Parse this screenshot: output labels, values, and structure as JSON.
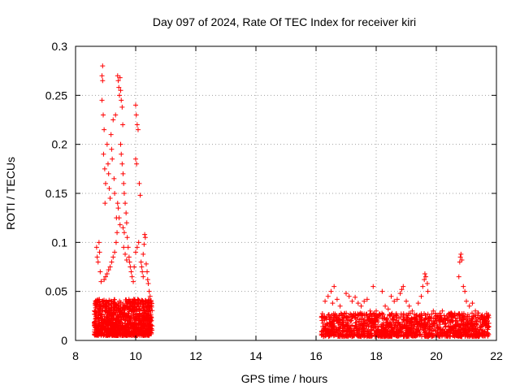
{
  "chart_data": {
    "type": "scatter",
    "title": "Day 097 of 2024, Rate Of TEC Index for receiver kiri",
    "xlabel": "GPS time / hours",
    "ylabel": "ROTI / TECUs",
    "xlim": [
      8,
      22
    ],
    "ylim": [
      0,
      0.3
    ],
    "x_ticks": [
      8,
      10,
      12,
      14,
      16,
      18,
      20,
      22
    ],
    "x_tick_labels": [
      "8",
      "10",
      "12",
      "14",
      "16",
      "18",
      "20",
      "22"
    ],
    "y_ticks": [
      0,
      0.05,
      0.1,
      0.15,
      0.2,
      0.25,
      0.3
    ],
    "y_tick_labels": [
      "0",
      "0.05",
      "0.1",
      "0.15",
      "0.2",
      "0.25",
      "0.3"
    ],
    "grid": true,
    "marker": "+",
    "marker_color": "#ff0000",
    "series": [
      {
        "name": "ROTI",
        "points": [
          [
            8.7,
            0.095
          ],
          [
            8.72,
            0.085
          ],
          [
            8.75,
            0.08
          ],
          [
            8.78,
            0.1
          ],
          [
            8.8,
            0.09
          ],
          [
            8.82,
            0.07
          ],
          [
            8.85,
            0.06
          ],
          [
            8.88,
            0.27
          ],
          [
            8.9,
            0.28
          ],
          [
            8.9,
            0.265
          ],
          [
            8.88,
            0.245
          ],
          [
            8.92,
            0.23
          ],
          [
            8.95,
            0.215
          ],
          [
            8.97,
            0.175
          ],
          [
            8.93,
            0.19
          ],
          [
            9.0,
            0.16
          ],
          [
            8.98,
            0.14
          ],
          [
            9.05,
            0.2
          ],
          [
            9.08,
            0.18
          ],
          [
            9.1,
            0.17
          ],
          [
            9.12,
            0.155
          ],
          [
            9.15,
            0.145
          ],
          [
            9.18,
            0.21
          ],
          [
            9.2,
            0.195
          ],
          [
            9.22,
            0.185
          ],
          [
            9.25,
            0.225
          ],
          [
            9.28,
            0.165
          ],
          [
            9.3,
            0.15
          ],
          [
            9.33,
            0.23
          ],
          [
            9.36,
            0.125
          ],
          [
            9.38,
            0.11
          ],
          [
            9.4,
            0.27
          ],
          [
            9.42,
            0.265
          ],
          [
            9.44,
            0.258
          ],
          [
            9.46,
            0.25
          ],
          [
            9.48,
            0.268
          ],
          [
            9.5,
            0.255
          ],
          [
            9.52,
            0.245
          ],
          [
            9.55,
            0.238
          ],
          [
            9.57,
            0.22
          ],
          [
            9.5,
            0.2
          ],
          [
            9.52,
            0.19
          ],
          [
            9.55,
            0.18
          ],
          [
            9.58,
            0.17
          ],
          [
            9.6,
            0.16
          ],
          [
            9.62,
            0.15
          ],
          [
            9.65,
            0.14
          ],
          [
            9.68,
            0.13
          ],
          [
            9.7,
            0.12
          ],
          [
            9.72,
            0.105
          ],
          [
            9.75,
            0.095
          ],
          [
            9.78,
            0.085
          ],
          [
            9.8,
            0.08
          ],
          [
            9.82,
            0.075
          ],
          [
            9.85,
            0.07
          ],
          [
            9.88,
            0.065
          ],
          [
            9.92,
            0.06
          ],
          [
            9.95,
            0.075
          ],
          [
            9.4,
            0.14
          ],
          [
            9.42,
            0.135
          ],
          [
            9.45,
            0.125
          ],
          [
            9.48,
            0.118
          ],
          [
            9.35,
            0.1
          ],
          [
            9.3,
            0.09
          ],
          [
            9.25,
            0.085
          ],
          [
            9.2,
            0.08
          ],
          [
            9.15,
            0.075
          ],
          [
            9.1,
            0.072
          ],
          [
            9.05,
            0.068
          ],
          [
            9.0,
            0.065
          ],
          [
            8.95,
            0.062
          ],
          [
            9.6,
            0.095
          ],
          [
            9.65,
            0.088
          ],
          [
            9.7,
            0.082
          ],
          [
            9.58,
            0.115
          ],
          [
            9.62,
            0.11
          ],
          [
            10.0,
            0.24
          ],
          [
            10.02,
            0.23
          ],
          [
            10.05,
            0.22
          ],
          [
            10.08,
            0.215
          ],
          [
            10.0,
            0.185
          ],
          [
            10.03,
            0.18
          ],
          [
            10.12,
            0.16
          ],
          [
            10.15,
            0.148
          ],
          [
            10.1,
            0.1
          ],
          [
            10.05,
            0.095
          ],
          [
            10.0,
            0.09
          ],
          [
            10.18,
            0.08
          ],
          [
            10.2,
            0.075
          ],
          [
            10.22,
            0.07
          ],
          [
            10.25,
            0.065
          ],
          [
            10.3,
            0.108
          ],
          [
            10.32,
            0.105
          ],
          [
            10.28,
            0.098
          ],
          [
            10.25,
            0.088
          ],
          [
            10.35,
            0.078
          ],
          [
            10.38,
            0.07
          ],
          [
            10.4,
            0.062
          ],
          [
            10.42,
            0.058
          ],
          [
            10.45,
            0.05
          ],
          [
            10.48,
            0.045
          ],
          [
            16.3,
            0.04
          ],
          [
            16.4,
            0.045
          ],
          [
            16.5,
            0.05
          ],
          [
            16.6,
            0.055
          ],
          [
            16.55,
            0.038
          ],
          [
            16.7,
            0.042
          ],
          [
            16.8,
            0.035
          ],
          [
            17.0,
            0.048
          ],
          [
            17.1,
            0.045
          ],
          [
            17.2,
            0.04
          ],
          [
            17.3,
            0.044
          ],
          [
            17.4,
            0.038
          ],
          [
            17.5,
            0.035
          ],
          [
            17.6,
            0.04
          ],
          [
            17.7,
            0.042
          ],
          [
            17.8,
            0.03
          ],
          [
            17.9,
            0.055
          ],
          [
            18.0,
            0.03
          ],
          [
            18.2,
            0.05
          ],
          [
            18.3,
            0.035
          ],
          [
            18.4,
            0.032
          ],
          [
            18.5,
            0.045
          ],
          [
            18.6,
            0.04
          ],
          [
            18.7,
            0.042
          ],
          [
            18.8,
            0.048
          ],
          [
            18.85,
            0.052
          ],
          [
            18.9,
            0.055
          ],
          [
            19.0,
            0.04
          ],
          [
            19.1,
            0.035
          ],
          [
            19.2,
            0.03
          ],
          [
            19.4,
            0.038
          ],
          [
            19.5,
            0.045
          ],
          [
            19.55,
            0.055
          ],
          [
            19.6,
            0.062
          ],
          [
            19.62,
            0.068
          ],
          [
            19.65,
            0.065
          ],
          [
            19.7,
            0.058
          ],
          [
            19.72,
            0.05
          ],
          [
            19.9,
            0.03
          ],
          [
            20.0,
            0.025
          ],
          [
            20.2,
            0.03
          ],
          [
            20.3,
            0.022
          ],
          [
            20.5,
            0.028
          ],
          [
            20.6,
            0.025
          ],
          [
            20.75,
            0.065
          ],
          [
            20.78,
            0.08
          ],
          [
            20.8,
            0.085
          ],
          [
            20.82,
            0.088
          ],
          [
            20.85,
            0.082
          ],
          [
            20.9,
            0.055
          ],
          [
            20.95,
            0.05
          ],
          [
            21.0,
            0.04
          ],
          [
            21.1,
            0.035
          ],
          [
            21.2,
            0.038
          ],
          [
            21.3,
            0.03
          ],
          [
            21.4,
            0.028
          ],
          [
            21.5,
            0.025
          ],
          [
            21.6,
            0.022
          ],
          [
            21.7,
            0.02
          ]
        ],
        "dense_bands": [
          {
            "x_range": [
              8.62,
              10.55
            ],
            "y_range": [
              0.005,
              0.042
            ],
            "count": 1100
          },
          {
            "x_range": [
              16.18,
              21.75
            ],
            "y_range": [
              0.004,
              0.028
            ],
            "count": 1400
          }
        ]
      }
    ]
  }
}
